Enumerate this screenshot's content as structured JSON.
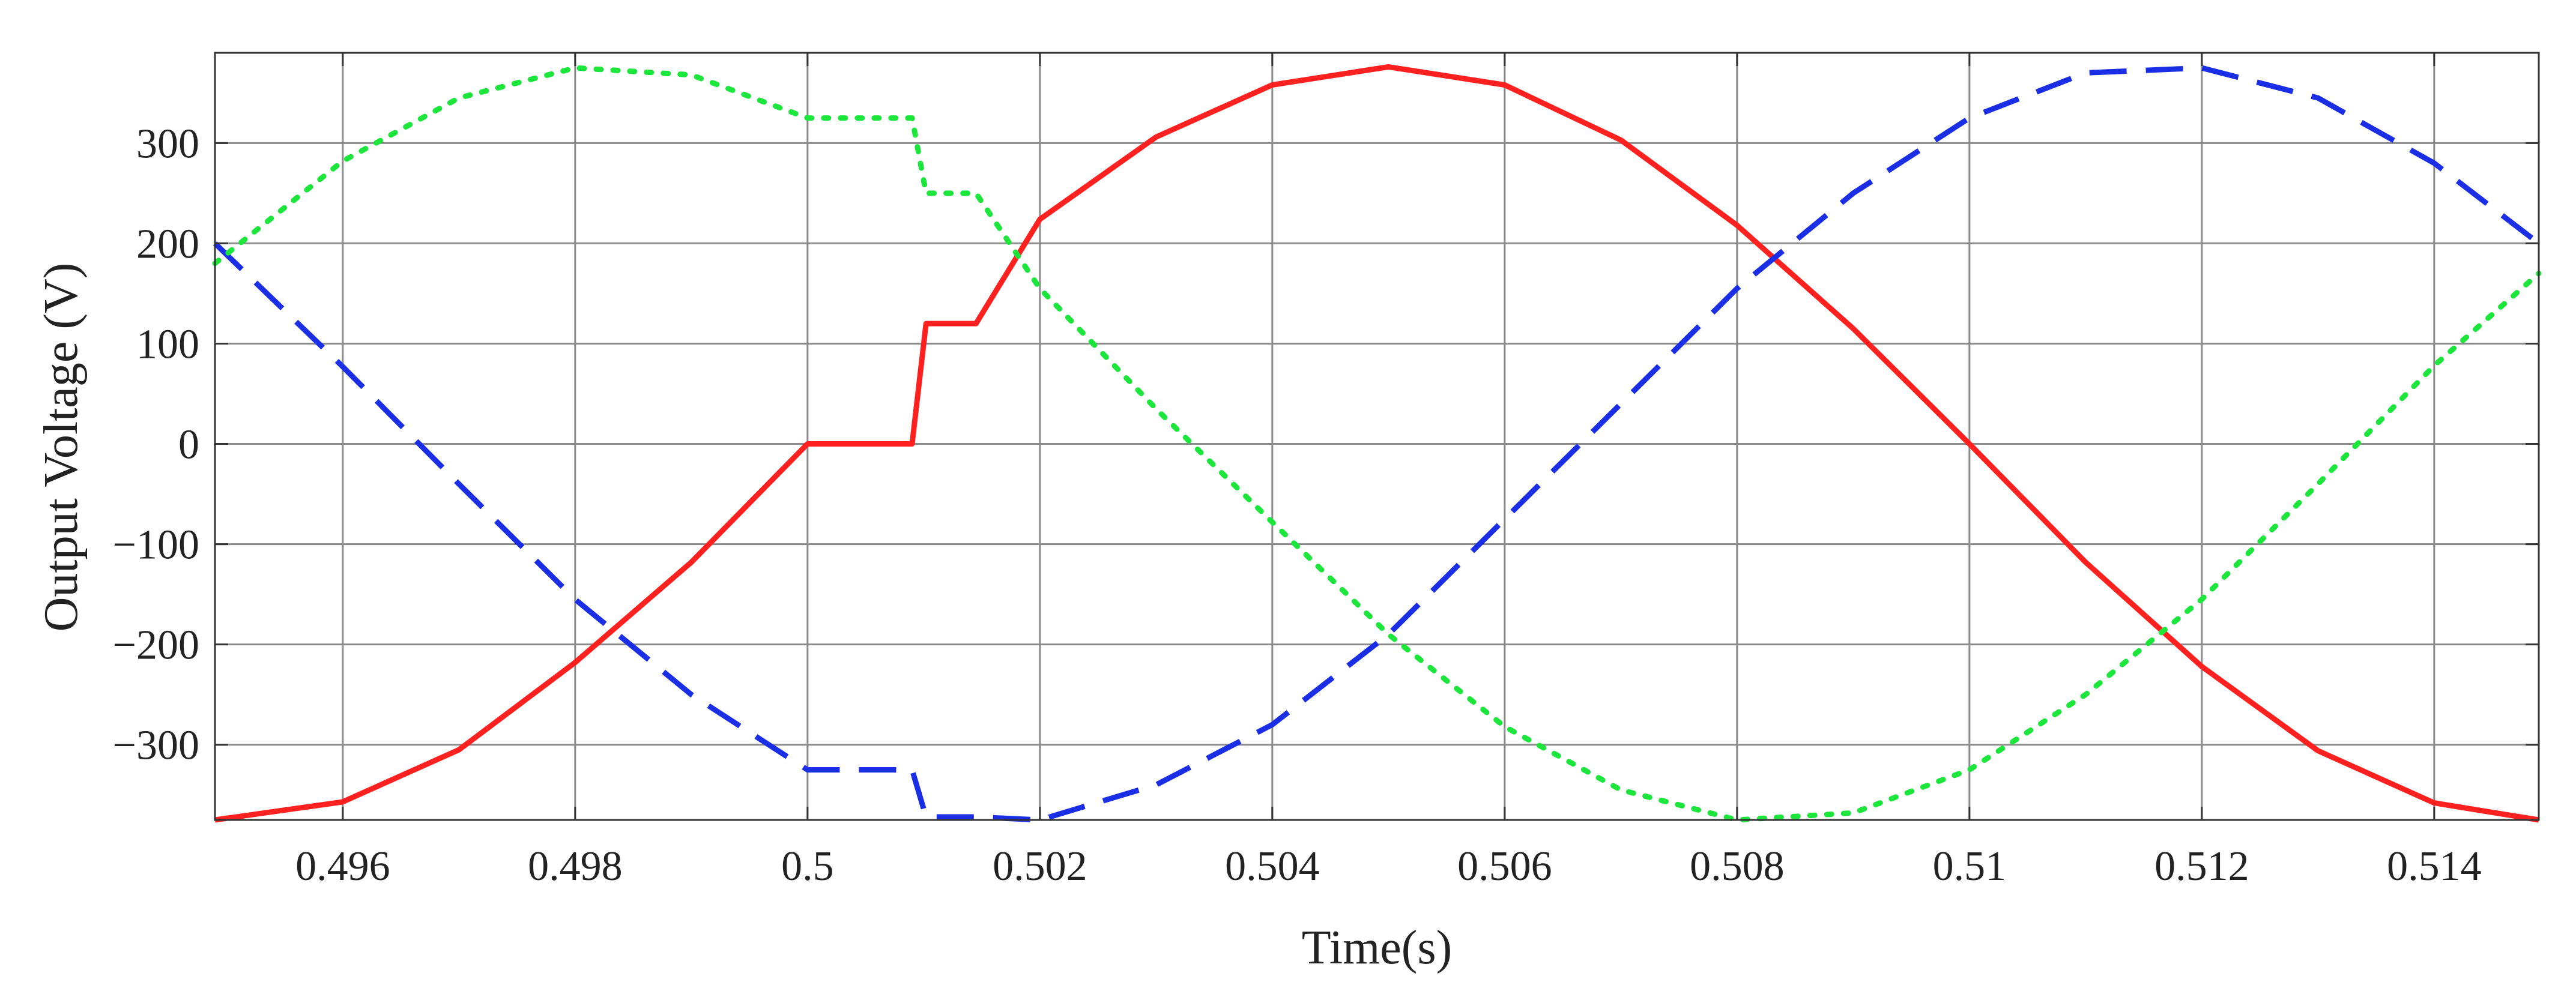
{
  "chart_data": {
    "type": "line",
    "title": "",
    "xlabel": "Time(s)",
    "ylabel": "Output Voltage (V)",
    "xlim": [
      0.4949,
      0.5149
    ],
    "ylim": [
      -375,
      390
    ],
    "grid": true,
    "x_ticks": [
      0.496,
      0.498,
      0.5,
      0.502,
      0.504,
      0.506,
      0.508,
      0.51,
      0.512,
      0.514
    ],
    "x_tick_labels": [
      "0.496",
      "0.498",
      "0.5",
      "0.502",
      "0.504",
      "0.506",
      "0.508",
      "0.51",
      "0.512",
      "0.514"
    ],
    "y_ticks": [
      -300,
      -200,
      -100,
      0,
      100,
      200,
      300
    ],
    "y_tick_labels": [
      "−300",
      "−200",
      "−100",
      "0",
      "100",
      "200",
      "300"
    ],
    "series": [
      {
        "color": "#ff2020",
        "style": "solid",
        "x": [
          0.4949,
          0.496,
          0.497,
          0.498,
          0.499,
          0.5,
          0.5009,
          0.50102,
          0.50145,
          0.502,
          0.503,
          0.504,
          0.505,
          0.506,
          0.507,
          0.508,
          0.509,
          0.51,
          0.511,
          0.512,
          0.513,
          0.514,
          0.5149
        ],
        "y": [
          -375,
          -357,
          -305,
          -218,
          -118,
          0,
          0,
          120,
          120,
          224,
          306,
          358,
          376,
          358,
          303,
          218,
          115,
          0,
          -118,
          -222,
          -306,
          -358,
          -375
        ]
      },
      {
        "color": "#1a2ee6",
        "style": "dashed",
        "x": [
          0.4949,
          0.496,
          0.497,
          0.498,
          0.499,
          0.5,
          0.5009,
          0.50102,
          0.50145,
          0.502,
          0.503,
          0.504,
          0.505,
          0.506,
          0.507,
          0.508,
          0.509,
          0.51,
          0.511,
          0.512,
          0.513,
          0.514,
          0.5149
        ],
        "y": [
          200,
          77,
          -40,
          -155,
          -250,
          -325,
          -325,
          -372,
          -372,
          -375,
          -340,
          -280,
          -190,
          -75,
          40,
          155,
          250,
          325,
          370,
          375,
          345,
          280,
          200
        ]
      },
      {
        "color": "#1ce63c",
        "style": "dotted",
        "x": [
          0.4949,
          0.496,
          0.497,
          0.498,
          0.499,
          0.5,
          0.5009,
          0.50102,
          0.50145,
          0.502,
          0.503,
          0.504,
          0.505,
          0.506,
          0.507,
          0.508,
          0.509,
          0.51,
          0.511,
          0.512,
          0.513,
          0.514,
          0.5149
        ],
        "y": [
          180,
          282,
          345,
          375,
          368,
          325,
          325,
          250,
          250,
          155,
          35,
          -78,
          -190,
          -282,
          -345,
          -375,
          -368,
          -325,
          -250,
          -155,
          -40,
          78,
          170
        ]
      }
    ]
  }
}
